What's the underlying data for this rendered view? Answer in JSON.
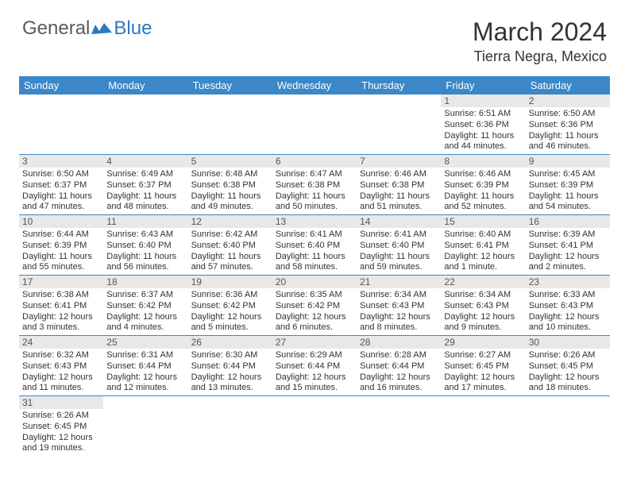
{
  "logo": {
    "general": "General",
    "blue": "Blue"
  },
  "title": "March 2024",
  "location": "Tierra Negra, Mexico",
  "colors": {
    "header_bg": "#3b87c8",
    "header_text": "#ffffff",
    "daynum_bg": "#e8e8e8",
    "border": "#3b87c8",
    "body_text": "#333333",
    "logo_gray": "#5a5a5a",
    "logo_blue": "#2c7abf"
  },
  "day_headers": [
    "Sunday",
    "Monday",
    "Tuesday",
    "Wednesday",
    "Thursday",
    "Friday",
    "Saturday"
  ],
  "weeks": [
    [
      null,
      null,
      null,
      null,
      null,
      {
        "n": "1",
        "sr": "Sunrise: 6:51 AM",
        "ss": "Sunset: 6:36 PM",
        "dl1": "Daylight: 11 hours",
        "dl2": "and 44 minutes."
      },
      {
        "n": "2",
        "sr": "Sunrise: 6:50 AM",
        "ss": "Sunset: 6:36 PM",
        "dl1": "Daylight: 11 hours",
        "dl2": "and 46 minutes."
      }
    ],
    [
      {
        "n": "3",
        "sr": "Sunrise: 6:50 AM",
        "ss": "Sunset: 6:37 PM",
        "dl1": "Daylight: 11 hours",
        "dl2": "and 47 minutes."
      },
      {
        "n": "4",
        "sr": "Sunrise: 6:49 AM",
        "ss": "Sunset: 6:37 PM",
        "dl1": "Daylight: 11 hours",
        "dl2": "and 48 minutes."
      },
      {
        "n": "5",
        "sr": "Sunrise: 6:48 AM",
        "ss": "Sunset: 6:38 PM",
        "dl1": "Daylight: 11 hours",
        "dl2": "and 49 minutes."
      },
      {
        "n": "6",
        "sr": "Sunrise: 6:47 AM",
        "ss": "Sunset: 6:38 PM",
        "dl1": "Daylight: 11 hours",
        "dl2": "and 50 minutes."
      },
      {
        "n": "7",
        "sr": "Sunrise: 6:46 AM",
        "ss": "Sunset: 6:38 PM",
        "dl1": "Daylight: 11 hours",
        "dl2": "and 51 minutes."
      },
      {
        "n": "8",
        "sr": "Sunrise: 6:46 AM",
        "ss": "Sunset: 6:39 PM",
        "dl1": "Daylight: 11 hours",
        "dl2": "and 52 minutes."
      },
      {
        "n": "9",
        "sr": "Sunrise: 6:45 AM",
        "ss": "Sunset: 6:39 PM",
        "dl1": "Daylight: 11 hours",
        "dl2": "and 54 minutes."
      }
    ],
    [
      {
        "n": "10",
        "sr": "Sunrise: 6:44 AM",
        "ss": "Sunset: 6:39 PM",
        "dl1": "Daylight: 11 hours",
        "dl2": "and 55 minutes."
      },
      {
        "n": "11",
        "sr": "Sunrise: 6:43 AM",
        "ss": "Sunset: 6:40 PM",
        "dl1": "Daylight: 11 hours",
        "dl2": "and 56 minutes."
      },
      {
        "n": "12",
        "sr": "Sunrise: 6:42 AM",
        "ss": "Sunset: 6:40 PM",
        "dl1": "Daylight: 11 hours",
        "dl2": "and 57 minutes."
      },
      {
        "n": "13",
        "sr": "Sunrise: 6:41 AM",
        "ss": "Sunset: 6:40 PM",
        "dl1": "Daylight: 11 hours",
        "dl2": "and 58 minutes."
      },
      {
        "n": "14",
        "sr": "Sunrise: 6:41 AM",
        "ss": "Sunset: 6:40 PM",
        "dl1": "Daylight: 11 hours",
        "dl2": "and 59 minutes."
      },
      {
        "n": "15",
        "sr": "Sunrise: 6:40 AM",
        "ss": "Sunset: 6:41 PM",
        "dl1": "Daylight: 12 hours",
        "dl2": "and 1 minute."
      },
      {
        "n": "16",
        "sr": "Sunrise: 6:39 AM",
        "ss": "Sunset: 6:41 PM",
        "dl1": "Daylight: 12 hours",
        "dl2": "and 2 minutes."
      }
    ],
    [
      {
        "n": "17",
        "sr": "Sunrise: 6:38 AM",
        "ss": "Sunset: 6:41 PM",
        "dl1": "Daylight: 12 hours",
        "dl2": "and 3 minutes."
      },
      {
        "n": "18",
        "sr": "Sunrise: 6:37 AM",
        "ss": "Sunset: 6:42 PM",
        "dl1": "Daylight: 12 hours",
        "dl2": "and 4 minutes."
      },
      {
        "n": "19",
        "sr": "Sunrise: 6:36 AM",
        "ss": "Sunset: 6:42 PM",
        "dl1": "Daylight: 12 hours",
        "dl2": "and 5 minutes."
      },
      {
        "n": "20",
        "sr": "Sunrise: 6:35 AM",
        "ss": "Sunset: 6:42 PM",
        "dl1": "Daylight: 12 hours",
        "dl2": "and 6 minutes."
      },
      {
        "n": "21",
        "sr": "Sunrise: 6:34 AM",
        "ss": "Sunset: 6:43 PM",
        "dl1": "Daylight: 12 hours",
        "dl2": "and 8 minutes."
      },
      {
        "n": "22",
        "sr": "Sunrise: 6:34 AM",
        "ss": "Sunset: 6:43 PM",
        "dl1": "Daylight: 12 hours",
        "dl2": "and 9 minutes."
      },
      {
        "n": "23",
        "sr": "Sunrise: 6:33 AM",
        "ss": "Sunset: 6:43 PM",
        "dl1": "Daylight: 12 hours",
        "dl2": "and 10 minutes."
      }
    ],
    [
      {
        "n": "24",
        "sr": "Sunrise: 6:32 AM",
        "ss": "Sunset: 6:43 PM",
        "dl1": "Daylight: 12 hours",
        "dl2": "and 11 minutes."
      },
      {
        "n": "25",
        "sr": "Sunrise: 6:31 AM",
        "ss": "Sunset: 6:44 PM",
        "dl1": "Daylight: 12 hours",
        "dl2": "and 12 minutes."
      },
      {
        "n": "26",
        "sr": "Sunrise: 6:30 AM",
        "ss": "Sunset: 6:44 PM",
        "dl1": "Daylight: 12 hours",
        "dl2": "and 13 minutes."
      },
      {
        "n": "27",
        "sr": "Sunrise: 6:29 AM",
        "ss": "Sunset: 6:44 PM",
        "dl1": "Daylight: 12 hours",
        "dl2": "and 15 minutes."
      },
      {
        "n": "28",
        "sr": "Sunrise: 6:28 AM",
        "ss": "Sunset: 6:44 PM",
        "dl1": "Daylight: 12 hours",
        "dl2": "and 16 minutes."
      },
      {
        "n": "29",
        "sr": "Sunrise: 6:27 AM",
        "ss": "Sunset: 6:45 PM",
        "dl1": "Daylight: 12 hours",
        "dl2": "and 17 minutes."
      },
      {
        "n": "30",
        "sr": "Sunrise: 6:26 AM",
        "ss": "Sunset: 6:45 PM",
        "dl1": "Daylight: 12 hours",
        "dl2": "and 18 minutes."
      }
    ],
    [
      {
        "n": "31",
        "sr": "Sunrise: 6:26 AM",
        "ss": "Sunset: 6:45 PM",
        "dl1": "Daylight: 12 hours",
        "dl2": "and 19 minutes."
      },
      null,
      null,
      null,
      null,
      null,
      null
    ]
  ]
}
